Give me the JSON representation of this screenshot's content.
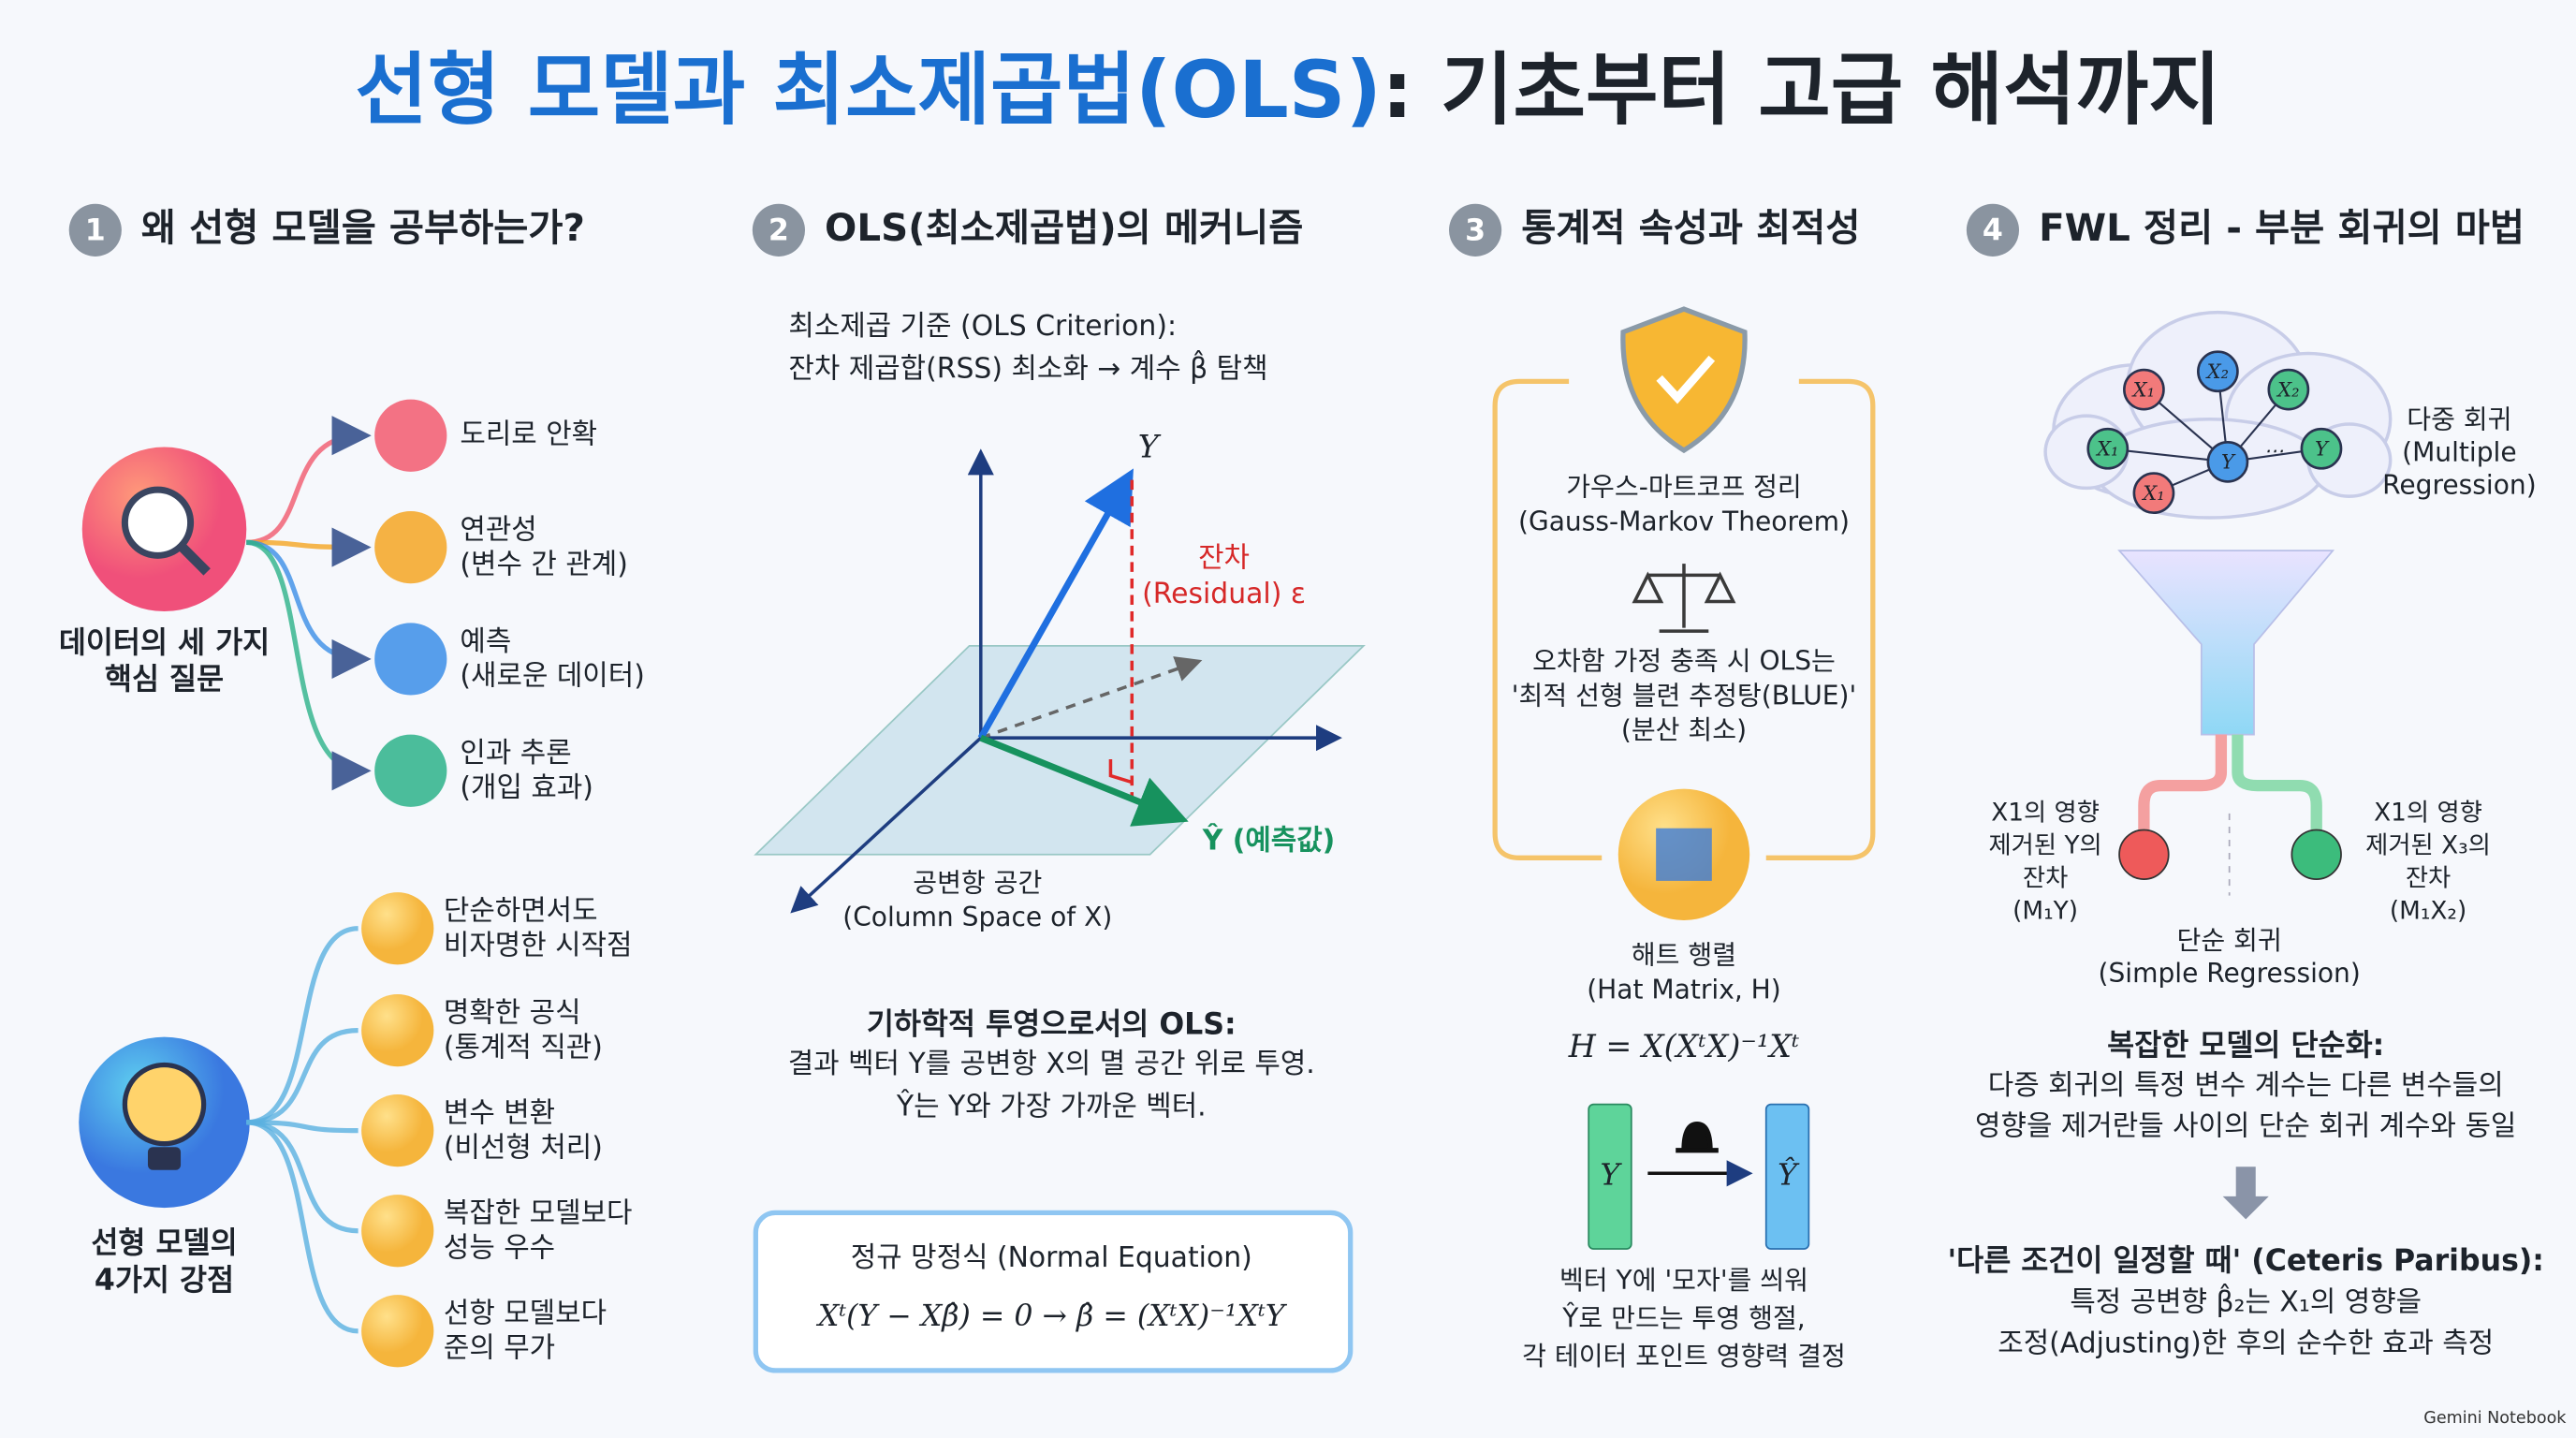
{
  "title": {
    "part1": "선형 모델과 최소제곱법(OLS)",
    "part2": ": 기초부터 고급 해석까지"
  },
  "sections": [
    {
      "number": "1",
      "heading": "왜 선형 모델을 공부하는가?",
      "questions_hub": [
        "데이터의 세 가지",
        "핵심 질문"
      ],
      "questions": [
        [
          "도리로 안확"
        ],
        [
          "연관성",
          "(변수 간 관계)"
        ],
        [
          "예측",
          "(새로운 데이터)"
        ],
        [
          "인과 추론",
          "(개입 효과)"
        ]
      ],
      "strengths_hub": [
        "선형 모델의",
        "4가지 강점"
      ],
      "strengths": [
        [
          "단순하면서도",
          "비자명한 시작점"
        ],
        [
          "명확한 공식",
          "(통계적 직관)"
        ],
        [
          "변수 변환",
          "(비선형 처리)"
        ],
        [
          "복잡한 모델보다",
          "성능 우수"
        ],
        [
          "선항 모델보다",
          "준의 무가"
        ]
      ]
    },
    {
      "number": "2",
      "heading": "OLS(최소제곱법)의 메커니즘",
      "criterion": [
        "최소제곱 기준 (OLS Criterion):",
        "잔차 제곱합(RSS) 최소화 → 계수 β̂ 탐책"
      ],
      "y_label": "Y",
      "residual_label": [
        "잔차",
        "(Residual) ε"
      ],
      "yhat_label": "Ŷ (예측값)",
      "space_label": [
        "공변항 공간",
        "(Column Space of X)"
      ],
      "projection_heading": "기하학적 투영으로서의 OLS:",
      "projection_text": [
        "결과 벡터 Y를 공변항 X의 멸 공간 위로 투영.",
        "Ŷ는 Y와 가장 가까운 벡터."
      ],
      "normal_equation_title": "정규 망정식 (Normal Equation)",
      "normal_equation": "Xᵗ(Y − Xβ̂) = 0 → β̂ = (XᵗX)⁻¹XᵗY"
    },
    {
      "number": "3",
      "heading": "통계적 속성과 최적성",
      "theorem": [
        "가우스-마트코프 정리",
        "(Gauss-Markov Theorem)"
      ],
      "blue_text": [
        "오차함 가정 충족 시 OLS는",
        "'최적 선형 블련 추정탕(BLUE)'",
        "(분산 최소)"
      ],
      "hat_matrix": [
        "해트 행렬",
        "(Hat Matrix, H)"
      ],
      "hat_formula": "H = X(XᵗX)⁻¹Xᵗ",
      "vector_in": "Y",
      "vector_out": "Ŷ",
      "hat_text": [
        "벡터 Y에 '모자'를 씌워",
        "Ŷ로 만드는 투영 행절,",
        "각 테이터 포인트 영향력 결정"
      ]
    },
    {
      "number": "4",
      "heading": "FWL 정리 - 부분 회귀의 마법",
      "nodes": [
        "X₁",
        "X₂",
        "X₂",
        "X₁",
        "Y",
        "⋯",
        "Y",
        "X₁"
      ],
      "multiple": [
        "다중 회귀",
        "(Multiple",
        "Regression)"
      ],
      "left_residual": [
        "X1의 영향",
        "제거된 Y의",
        "잔차",
        "(M₁Y)"
      ],
      "right_residual": [
        "X1의 영향",
        "제거된 X₃의",
        "잔차",
        "(M₁X₂)"
      ],
      "simple": [
        "단순 회귀",
        "(Simple Regression)"
      ],
      "simplify_heading": "복잡한 모델의 단순화:",
      "simplify_text": [
        "다증 회귀의 특정 변수 계수는 다른 변수들의",
        "영향을 제거란들 사이의 단순 회귀 계수와 동일"
      ],
      "ceteris_heading": "'다른 조건이 일정할 때' (Ceteris Paribus):",
      "ceteris_text": [
        "특정 공변향 β̂₂는 X₁의 영향을",
        "조정(Adjusting)한 후의 순수한 효과 측정"
      ]
    }
  ],
  "footer": "Gemini Notebook"
}
